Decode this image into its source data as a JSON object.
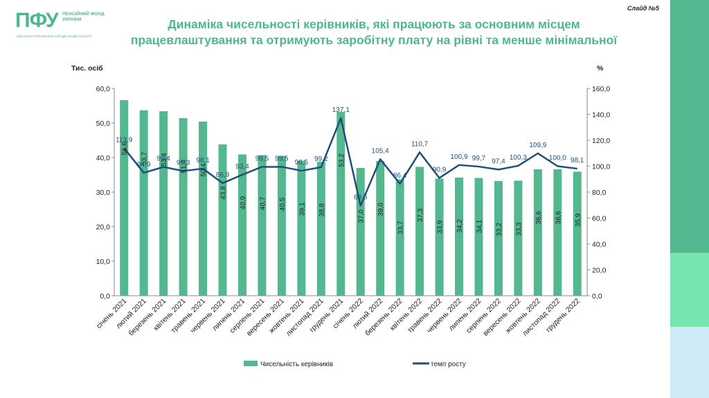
{
  "header": {
    "logo_mark": "ПФУ",
    "logo_name": "ПЕНСІЙНИЙ ФОНД УКРАЇНИ",
    "logo_tagline": "ЄДНАЄМО ПОКОЛІННЯ ЗАРАДИ МАЙБУТНЬОГО",
    "slide_number": "Слайд №5",
    "title_line1": "Динаміка чисельності керівників, які працюють за основним місцем",
    "title_line2": "працевлаштування та отримують заробітну плату на рівні та менше мінімальної"
  },
  "colors": {
    "bar": "#53b88f",
    "line": "#1f4e79",
    "title": "#4fb88a"
  },
  "chart_data": {
    "type": "bar",
    "ylabel": "Тис. осіб",
    "y2label": "%",
    "ylim": [
      0,
      60
    ],
    "y2lim": [
      0,
      160
    ],
    "yticks": [
      "0,0",
      "10,0",
      "20,0",
      "30,0",
      "40,0",
      "50,0",
      "60,0"
    ],
    "y2ticks": [
      "0,0",
      "20,0",
      "40,0",
      "60,0",
      "80,0",
      "100,0",
      "120,0",
      "140,0",
      "160,0"
    ],
    "grid": false,
    "legend_position": "bottom",
    "categories": [
      "січень 2021",
      "лютий 2021",
      "березень 2021",
      "квітень 2021",
      "травень 2021",
      "червень 2021",
      "липень 2021",
      "серпень 2021",
      "вересень 2021",
      "жовтень 2021",
      "листопад 2021",
      "грудень 2021",
      "січень 2022",
      "лютий 2022",
      "березень 2022",
      "квітень 2022",
      "травень 2022",
      "червень 2022",
      "липень 2022",
      "серпень 2022",
      "вересень 2022",
      "жовтень 2022",
      "листопад 2022",
      "грудень 2022"
    ],
    "series": [
      {
        "name": "Чисельність керівників",
        "type": "bar",
        "axis": "left",
        "values": [
          56.6,
          53.7,
          53.4,
          51.4,
          50.4,
          43.8,
          40.9,
          40.7,
          40.5,
          39.1,
          38.8,
          53.2,
          37.0,
          39.0,
          33.7,
          37.3,
          33.9,
          34.2,
          34.1,
          33.2,
          33.3,
          36.6,
          36.6,
          35.9
        ],
        "labels": [
          "56,6",
          "53,7",
          "53,4",
          "51,4",
          "50,4",
          "43,8",
          "40,9",
          "40,7",
          "40,5",
          "39,1",
          "38,8",
          "53,2",
          "37,0",
          "39,0",
          "33,7",
          "37,3",
          "33,9",
          "34,2",
          "34,1",
          "33,2",
          "33,3",
          "36,6",
          "36,6",
          "35,9"
        ]
      },
      {
        "name": "темп росту",
        "type": "line",
        "axis": "right",
        "values": [
          113.9,
          94.9,
          99.4,
          96.3,
          98.1,
          86.9,
          93.4,
          99.5,
          99.5,
          96.5,
          99.2,
          137.1,
          69.5,
          105.4,
          86.4,
          110.7,
          90.9,
          100.9,
          99.7,
          97.4,
          100.3,
          109.9,
          100.0,
          98.1
        ],
        "labels": [
          "113,9",
          "94,9",
          "99,4",
          "96,3",
          "98,1",
          "86,9",
          "93,4",
          "99,5",
          "99,5",
          "96,5",
          "99,2",
          "137,1",
          "69,5",
          "105,4",
          "86,4",
          "110,7",
          "90,9",
          "100,9",
          "99,7",
          "97,4",
          "100,3",
          "109,9",
          "100,0",
          "98,1"
        ]
      }
    ]
  }
}
